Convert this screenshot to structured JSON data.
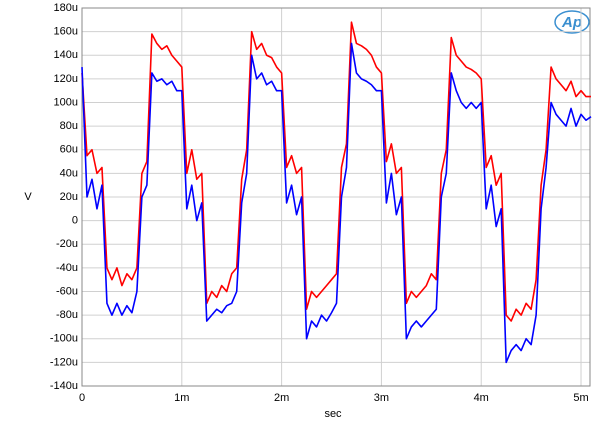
{
  "chart_data": {
    "type": "line",
    "logo": "Ap",
    "xlabel": "sec",
    "ylabel": "V",
    "xlim": [
      0,
      0.00509
    ],
    "ylim": [
      -140,
      180
    ],
    "xticks": [
      0,
      {
        "value": 0.001,
        "label": "1m"
      },
      {
        "value": 0.002,
        "label": "2m"
      },
      {
        "value": 0.003,
        "label": "3m"
      },
      {
        "value": 0.004,
        "label": "4m"
      },
      {
        "value": 0.005,
        "label": "5m"
      }
    ],
    "yticks": [
      {
        "value": -140,
        "label": "-140u"
      },
      {
        "value": -120,
        "label": "-120u"
      },
      {
        "value": -100,
        "label": "-100u"
      },
      {
        "value": -80,
        "label": "-80u"
      },
      {
        "value": -60,
        "label": "-60u"
      },
      {
        "value": -40,
        "label": "-40u"
      },
      {
        "value": -20,
        "label": "-20u"
      },
      0,
      {
        "value": 20,
        "label": "20u"
      },
      {
        "value": 40,
        "label": "40u"
      },
      {
        "value": 60,
        "label": "60u"
      },
      {
        "value": 80,
        "label": "80u"
      },
      {
        "value": 100,
        "label": "100u"
      },
      {
        "value": 120,
        "label": "120u"
      },
      {
        "value": 140,
        "label": "140u"
      },
      {
        "value": 160,
        "label": "160u"
      },
      {
        "value": 180,
        "label": "180u"
      }
    ],
    "grid": true,
    "x": [
      0,
      5e-05,
      0.0001,
      0.00015,
      0.0002,
      0.00025,
      0.0003,
      0.00035,
      0.0004,
      0.00045,
      0.0005,
      0.00055,
      0.0006,
      0.00065,
      0.0007,
      0.00075,
      0.0008,
      0.00085,
      0.0009,
      0.00095,
      0.001,
      0.00105,
      0.0011,
      0.00115,
      0.0012,
      0.00125,
      0.0013,
      0.00135,
      0.0014,
      0.00145,
      0.0015,
      0.00155,
      0.0016,
      0.00165,
      0.0017,
      0.00175,
      0.0018,
      0.00185,
      0.0019,
      0.00195,
      0.002,
      0.00205,
      0.0021,
      0.00215,
      0.0022,
      0.00225,
      0.0023,
      0.00235,
      0.0024,
      0.00245,
      0.0025,
      0.00255,
      0.0026,
      0.00265,
      0.0027,
      0.00275,
      0.0028,
      0.00285,
      0.0029,
      0.00295,
      0.003,
      0.00305,
      0.0031,
      0.00315,
      0.0032,
      0.00325,
      0.0033,
      0.00335,
      0.0034,
      0.00345,
      0.0035,
      0.00355,
      0.0036,
      0.00365,
      0.0037,
      0.00375,
      0.0038,
      0.00385,
      0.0039,
      0.00395,
      0.004,
      0.00405,
      0.0041,
      0.00415,
      0.0042,
      0.00425,
      0.0043,
      0.00435,
      0.0044,
      0.00445,
      0.0045,
      0.00455,
      0.0046,
      0.00465,
      0.0047,
      0.00475,
      0.0048,
      0.00485,
      0.0049,
      0.00495,
      0.005,
      0.00505,
      0.0051
    ],
    "series": [
      {
        "color": "#ff0000",
        "values": [
          125,
          55,
          60,
          40,
          45,
          -40,
          -50,
          -40,
          -55,
          -45,
          -50,
          -40,
          40,
          50,
          158,
          150,
          145,
          148,
          140,
          135,
          130,
          40,
          60,
          35,
          40,
          -70,
          -60,
          -65,
          -55,
          -60,
          -45,
          -40,
          35,
          60,
          160,
          145,
          150,
          140,
          138,
          130,
          125,
          45,
          55,
          40,
          45,
          -75,
          -60,
          -65,
          -60,
          -55,
          -50,
          -45,
          45,
          65,
          168,
          150,
          148,
          145,
          140,
          130,
          125,
          50,
          65,
          40,
          45,
          -70,
          -60,
          -65,
          -60,
          -55,
          -45,
          -50,
          40,
          60,
          155,
          140,
          135,
          130,
          128,
          125,
          120,
          45,
          55,
          30,
          40,
          -80,
          -85,
          -75,
          -80,
          -70,
          -75,
          -50,
          30,
          60,
          130,
          120,
          115,
          110,
          118,
          105,
          110,
          105,
          105
        ]
      },
      {
        "color": "#0000ff",
        "values": [
          130,
          20,
          35,
          10,
          30,
          -70,
          -80,
          -70,
          -80,
          -72,
          -78,
          -60,
          20,
          30,
          125,
          118,
          120,
          115,
          118,
          110,
          110,
          10,
          30,
          0,
          15,
          -85,
          -80,
          -75,
          -78,
          -72,
          -70,
          -60,
          15,
          40,
          140,
          120,
          125,
          115,
          118,
          110,
          110,
          15,
          30,
          5,
          20,
          -100,
          -85,
          -90,
          -80,
          -85,
          -78,
          -70,
          20,
          45,
          150,
          125,
          120,
          118,
          115,
          110,
          110,
          15,
          40,
          5,
          20,
          -100,
          -90,
          -85,
          -90,
          -85,
          -80,
          -75,
          20,
          40,
          125,
          110,
          100,
          95,
          100,
          95,
          100,
          10,
          30,
          -5,
          10,
          -120,
          -110,
          -105,
          -110,
          -100,
          -105,
          -80,
          10,
          45,
          100,
          90,
          85,
          80,
          95,
          80,
          90,
          85,
          88
        ]
      }
    ]
  }
}
